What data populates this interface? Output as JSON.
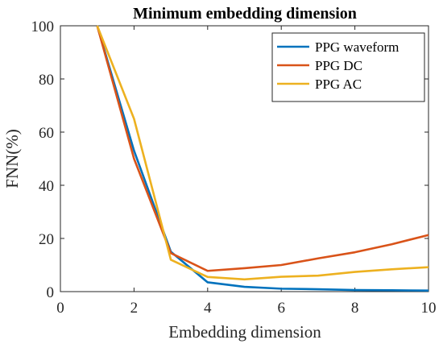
{
  "chart_data": {
    "type": "line",
    "title": "Minimum embedding dimension",
    "xlabel": "Embedding dimension",
    "ylabel": "FNN(%)",
    "xlim": [
      0,
      10
    ],
    "ylim": [
      0,
      100
    ],
    "xticks": [
      0,
      2,
      4,
      6,
      8,
      10
    ],
    "yticks": [
      0,
      20,
      40,
      60,
      80,
      100
    ],
    "grid": false,
    "legend_position": "top-right",
    "x": [
      1,
      2,
      3,
      4,
      5,
      6,
      7,
      8,
      9,
      10
    ],
    "series": [
      {
        "name": "PPG waveform",
        "color": "#0072BD",
        "values": [
          100,
          53,
          15,
          3.5,
          1.8,
          1.1,
          0.9,
          0.6,
          0.5,
          0.4
        ]
      },
      {
        "name": "PPG DC",
        "color": "#D95319",
        "values": [
          100,
          50,
          14.5,
          7.8,
          8.8,
          10,
          12.5,
          14.8,
          17.8,
          21.3
        ]
      },
      {
        "name": "PPG AC",
        "color": "#EDB120",
        "values": [
          100,
          65,
          12,
          5.5,
          4.6,
          5.6,
          6,
          7.4,
          8.4,
          9.2
        ]
      }
    ]
  }
}
